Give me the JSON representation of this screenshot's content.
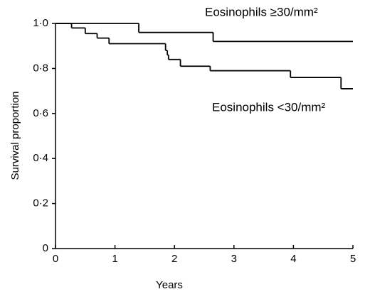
{
  "chart_data": {
    "type": "step",
    "xlabel": "Years",
    "ylabel": "Survival proportion",
    "xlim": [
      0,
      5
    ],
    "ylim": [
      0,
      1
    ],
    "xticks": [
      0,
      1,
      2,
      3,
      4,
      5
    ],
    "yticks": [
      0,
      {
        "value": 0.2,
        "label": "0·2"
      },
      {
        "value": 0.4,
        "label": "0·4"
      },
      {
        "value": 0.6,
        "label": "0·6"
      },
      {
        "value": 0.8,
        "label": "0·8"
      },
      {
        "value": 1,
        "label": "1·0"
      }
    ],
    "series": [
      {
        "name": "Eosinophils ≥30/mm²",
        "color": "#000000",
        "x": [
          0,
          1.4,
          2.65,
          5
        ],
        "values": [
          1,
          0.96,
          0.92,
          0.92
        ]
      },
      {
        "name": "Eosinophils <30/mm²",
        "color": "#000000",
        "x": [
          0,
          0.27,
          0.5,
          0.7,
          0.9,
          1.85,
          1.88,
          1.9,
          2.1,
          2.6,
          3.95,
          4.8,
          5
        ],
        "values": [
          1,
          0.98,
          0.955,
          0.935,
          0.91,
          0.88,
          0.86,
          0.84,
          0.81,
          0.79,
          0.76,
          0.71,
          0.71
        ]
      }
    ]
  }
}
